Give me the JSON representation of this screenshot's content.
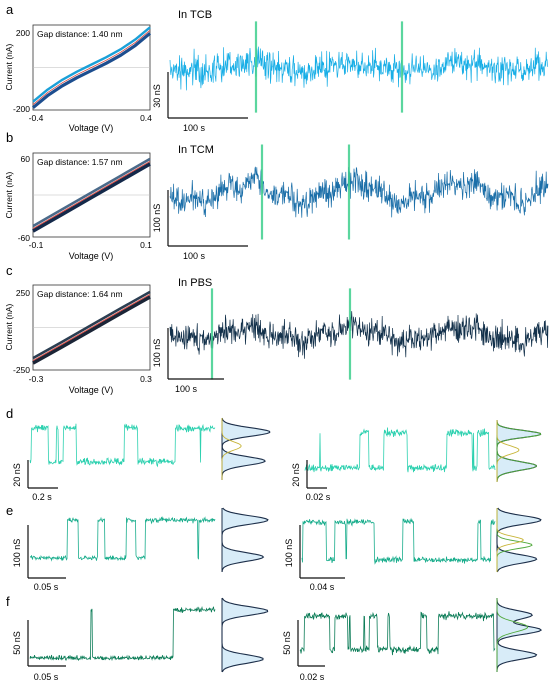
{
  "colors": {
    "tcb": "#18aee6",
    "tcm": "#1a6ea8",
    "pbs": "#12304a",
    "row_d": "#2ed1b0",
    "row_e": "#19ad8c",
    "row_f": "#0d7d58",
    "fit_red": "#d9443c",
    "marker_green": "#3fcf8e",
    "hist_fill": "#d8ecf8",
    "hist_line": "#1d2f4a",
    "gauss_green": "#4fa83a",
    "gauss_yellow": "#c8b63a"
  },
  "panels": {
    "a": {
      "letter": "a",
      "gap_label": "Gap distance: 1.40 nm",
      "condition": "In TCB",
      "ylabel": "Current (nA)",
      "xlabel": "Voltage (V)",
      "yticks": [
        "200",
        "-200"
      ],
      "xticks": [
        "-0.4",
        "0.4"
      ],
      "scale_y": "30 nS",
      "scale_x": "100 s"
    },
    "b": {
      "letter": "b",
      "gap_label": "Gap distance: 1.57 nm",
      "condition": "In TCM",
      "ylabel": "Current (nA)",
      "xlabel": "Voltage (V)",
      "yticks": [
        "60",
        "-60"
      ],
      "xticks": [
        "-0.1",
        "0.1"
      ],
      "scale_y": "100 nS",
      "scale_x": "100 s"
    },
    "c": {
      "letter": "c",
      "gap_label": "Gap distance: 1.64 nm",
      "condition": "In PBS",
      "ylabel": "Current (nA)",
      "xlabel": "Voltage (V)",
      "yticks": [
        "250",
        "-250"
      ],
      "xticks": [
        "-0.3",
        "0.3"
      ],
      "scale_y": "100 nS",
      "scale_x": "100 s"
    },
    "d": {
      "letter": "d",
      "left_scale_y": "20 nS",
      "left_scale_x": "0.2 s",
      "right_scale_y": "20 nS",
      "right_scale_x": "0.02 s"
    },
    "e": {
      "letter": "e",
      "left_scale_y": "100 nS",
      "left_scale_x": "0.05 s",
      "right_scale_y": "100 nS",
      "right_scale_x": "0.04 s"
    },
    "f": {
      "letter": "f",
      "left_scale_y": "50 nS",
      "left_scale_x": "0.05 s",
      "right_scale_y": "50 nS",
      "right_scale_x": "0.02 s"
    }
  },
  "chart_data": [
    {
      "panel": "a",
      "type": "line",
      "xlabel": "Voltage (V)",
      "ylabel": "Current (nA)",
      "xlim": [
        -0.4,
        0.4
      ],
      "ylim": [
        -200,
        200
      ],
      "series": [
        {
          "x": [
            -0.4,
            -0.3,
            -0.2,
            -0.1,
            0,
            0.1,
            0.2,
            0.3,
            0.4
          ],
          "y": [
            -175,
            -118,
            -72,
            -34,
            0,
            34,
            72,
            118,
            175
          ]
        }
      ]
    },
    {
      "panel": "b",
      "type": "line",
      "xlabel": "Voltage (V)",
      "ylabel": "Current (nA)",
      "xlim": [
        -0.1,
        0.1
      ],
      "ylim": [
        -60,
        60
      ],
      "series": [
        {
          "x": [
            -0.1,
            -0.05,
            0,
            0.05,
            0.1
          ],
          "y": [
            -48,
            -24,
            0,
            24,
            48
          ]
        }
      ]
    },
    {
      "panel": "c",
      "type": "line",
      "xlabel": "Voltage (V)",
      "ylabel": "Current (nA)",
      "xlim": [
        -0.3,
        0.3
      ],
      "ylim": [
        -250,
        250
      ],
      "series": [
        {
          "x": [
            -0.3,
            -0.15,
            0,
            0.15,
            0.3
          ],
          "y": [
            -195,
            -98,
            0,
            98,
            195
          ]
        }
      ]
    }
  ]
}
